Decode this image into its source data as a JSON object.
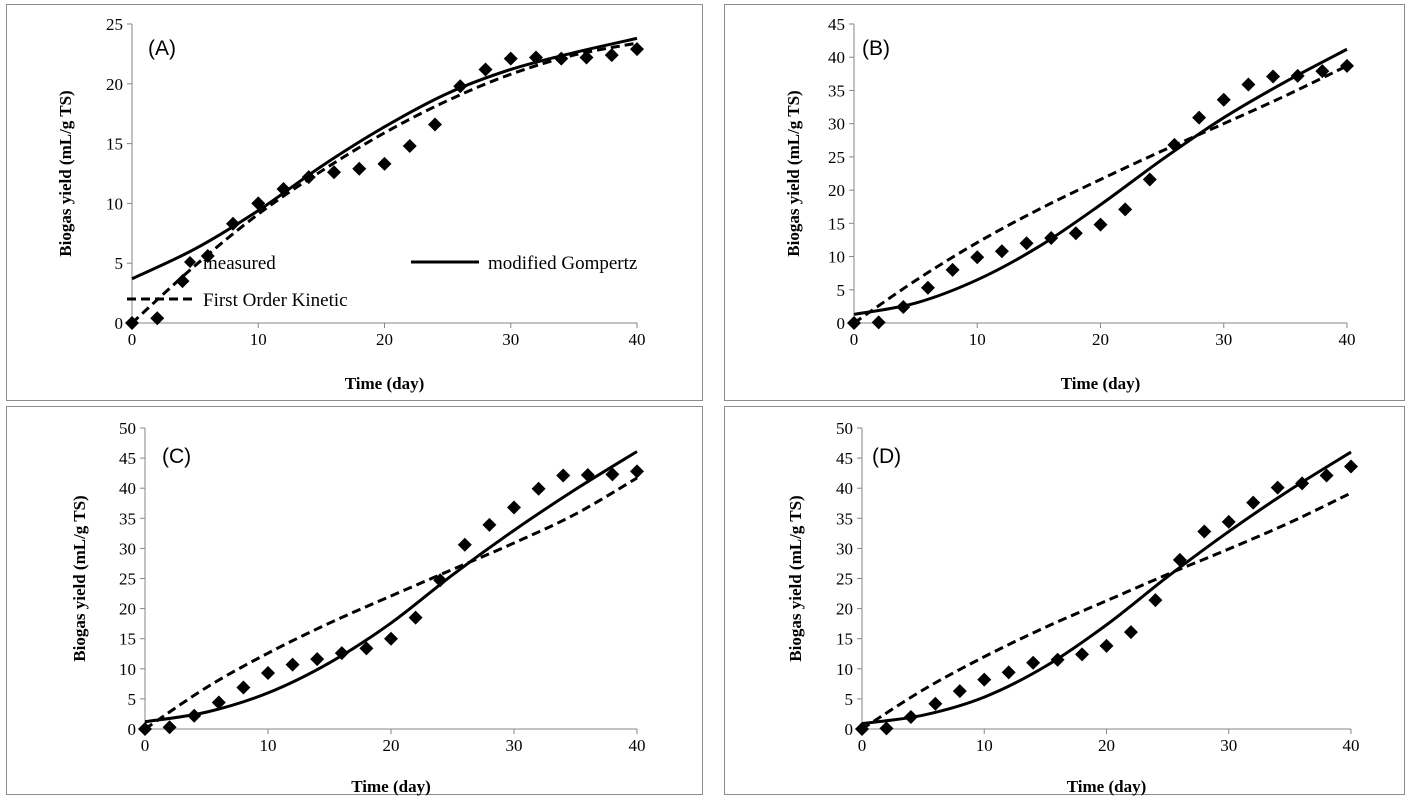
{
  "colors": {
    "marker": "#000000",
    "line": "#000000",
    "frame": "#8c8c8c",
    "axis": "#858585"
  },
  "legend": {
    "items": [
      {
        "label": "measured",
        "style": "diamond-marker"
      },
      {
        "label": "modified Gompertz",
        "style": "solid"
      },
      {
        "label": "First Order Kinetic",
        "style": "dashed"
      }
    ]
  },
  "chart_data": [
    {
      "type": "scatter",
      "tag": "(A)",
      "xlabel": "Time (day)",
      "ylabel": "Biogas yield (mL/g TS)",
      "xlim": [
        0,
        40
      ],
      "ylim": [
        0,
        25
      ],
      "xticks": [
        0,
        10,
        20,
        30,
        40
      ],
      "yticks": [
        0,
        5,
        10,
        15,
        20,
        25
      ],
      "grid": false,
      "legend_position": "inside, lower half",
      "series": [
        {
          "name": "measured",
          "kind": "markers",
          "x": [
            0,
            2,
            4,
            6,
            8,
            10,
            12,
            14,
            16,
            18,
            20,
            22,
            24,
            26,
            28,
            30,
            32,
            34,
            36,
            38,
            40
          ],
          "y": [
            0,
            0.4,
            3.5,
            5.6,
            8.3,
            10.0,
            11.2,
            12.2,
            12.6,
            12.9,
            13.3,
            14.8,
            16.6,
            19.8,
            21.2,
            22.1,
            22.2,
            22.1,
            22.2,
            22.4,
            22.9
          ]
        },
        {
          "name": "modified Gompertz",
          "kind": "solid",
          "x": [
            0,
            5,
            10,
            15,
            20,
            25,
            30,
            35,
            40
          ],
          "y": [
            3.7,
            6.2,
            9.4,
            13.1,
            16.4,
            19.2,
            21.2,
            22.6,
            23.8
          ]
        },
        {
          "name": "First Order Kinetic",
          "kind": "dashed",
          "x": [
            0,
            5,
            10,
            15,
            20,
            25,
            30,
            35,
            40
          ],
          "y": [
            0,
            4.8,
            9.1,
            12.7,
            15.9,
            18.6,
            20.8,
            22.4,
            23.4
          ]
        }
      ]
    },
    {
      "type": "scatter",
      "tag": "(B)",
      "xlabel": "Time (day)",
      "ylabel": "Biogas yield (mL/g TS)",
      "xlim": [
        0,
        40
      ],
      "ylim": [
        0,
        45
      ],
      "xticks": [
        0,
        10,
        20,
        30,
        40
      ],
      "yticks": [
        0,
        5,
        10,
        15,
        20,
        25,
        30,
        35,
        40,
        45
      ],
      "grid": false,
      "series": [
        {
          "name": "measured",
          "kind": "markers",
          "x": [
            0,
            2,
            4,
            6,
            8,
            10,
            12,
            14,
            16,
            18,
            20,
            22,
            24,
            26,
            28,
            30,
            32,
            34,
            36,
            38,
            40
          ],
          "y": [
            0,
            0.1,
            2.4,
            5.3,
            8.0,
            9.9,
            10.8,
            12.0,
            12.8,
            13.5,
            14.8,
            17.1,
            21.6,
            26.8,
            30.9,
            33.6,
            35.9,
            37.1,
            37.2,
            37.9,
            38.7
          ]
        },
        {
          "name": "modified Gompertz",
          "kind": "solid",
          "x": [
            0,
            5,
            10,
            15,
            20,
            25,
            30,
            35,
            40
          ],
          "y": [
            1.3,
            3.0,
            6.5,
            11.5,
            17.8,
            24.6,
            30.9,
            36.3,
            41.2
          ]
        },
        {
          "name": "First Order Kinetic",
          "kind": "dashed",
          "x": [
            0,
            5,
            10,
            15,
            20,
            25,
            30,
            35,
            40
          ],
          "y": [
            0,
            6.4,
            12.1,
            17.1,
            21.6,
            25.9,
            30.0,
            34.2,
            38.7
          ]
        }
      ]
    },
    {
      "type": "scatter",
      "tag": "(C)",
      "xlabel": "Time (day)",
      "ylabel": "Biogas yield  (mL/g TS)",
      "xlim": [
        0,
        40
      ],
      "ylim": [
        0,
        50
      ],
      "xticks": [
        0,
        10,
        20,
        30,
        40
      ],
      "yticks": [
        0,
        5,
        10,
        15,
        20,
        25,
        30,
        35,
        40,
        45,
        50
      ],
      "grid": false,
      "series": [
        {
          "name": "measured",
          "kind": "markers",
          "x": [
            0,
            2,
            4,
            6,
            8,
            10,
            12,
            14,
            16,
            18,
            20,
            22,
            24,
            26,
            28,
            30,
            32,
            34,
            36,
            38,
            40
          ],
          "y": [
            0,
            0.3,
            2.2,
            4.4,
            6.9,
            9.3,
            10.7,
            11.6,
            12.6,
            13.4,
            15.0,
            18.5,
            24.7,
            30.6,
            33.9,
            36.8,
            39.9,
            42.1,
            42.2,
            42.3,
            42.8
          ]
        },
        {
          "name": "modified Gompertz",
          "kind": "solid",
          "x": [
            0,
            5,
            10,
            15,
            20,
            25,
            30,
            35,
            40
          ],
          "y": [
            1.2,
            2.8,
            6.0,
            11.0,
            17.6,
            25.6,
            33.0,
            39.8,
            46.1
          ]
        },
        {
          "name": "First Order Kinetic",
          "kind": "dashed",
          "x": [
            0,
            5,
            10,
            15,
            20,
            25,
            30,
            35,
            40
          ],
          "y": [
            0,
            6.9,
            12.6,
            17.6,
            22.1,
            26.5,
            30.9,
            35.7,
            41.7
          ]
        }
      ]
    },
    {
      "type": "scatter",
      "tag": "(D)",
      "xlabel": "Time (day)",
      "ylabel": "Biogas yield  (mL/g TS)",
      "xlim": [
        0,
        40
      ],
      "ylim": [
        0,
        50
      ],
      "xticks": [
        0,
        10,
        20,
        30,
        40
      ],
      "yticks": [
        0,
        5,
        10,
        15,
        20,
        25,
        30,
        35,
        40,
        45,
        50
      ],
      "grid": false,
      "series": [
        {
          "name": "measured",
          "kind": "markers",
          "x": [
            0,
            2,
            4,
            6,
            8,
            10,
            12,
            14,
            16,
            18,
            20,
            22,
            24,
            26,
            28,
            30,
            32,
            34,
            36,
            38,
            40
          ],
          "y": [
            0,
            0.1,
            2.0,
            4.2,
            6.3,
            8.2,
            9.4,
            11.0,
            11.5,
            12.4,
            13.8,
            16.1,
            21.4,
            28.1,
            32.8,
            34.4,
            37.6,
            40.1,
            40.8,
            42.1,
            43.6
          ]
        },
        {
          "name": "modified Gompertz",
          "kind": "solid",
          "x": [
            0,
            5,
            10,
            15,
            20,
            25,
            30,
            35,
            40
          ],
          "y": [
            0.9,
            2.3,
            5.3,
            10.4,
            17.3,
            25.3,
            32.8,
            39.7,
            46.0
          ]
        },
        {
          "name": "First Order Kinetic",
          "kind": "dashed",
          "x": [
            0,
            5,
            10,
            15,
            20,
            25,
            30,
            35,
            40
          ],
          "y": [
            0,
            6.5,
            12.0,
            16.9,
            21.3,
            25.7,
            29.9,
            34.3,
            39.2
          ]
        }
      ]
    }
  ]
}
